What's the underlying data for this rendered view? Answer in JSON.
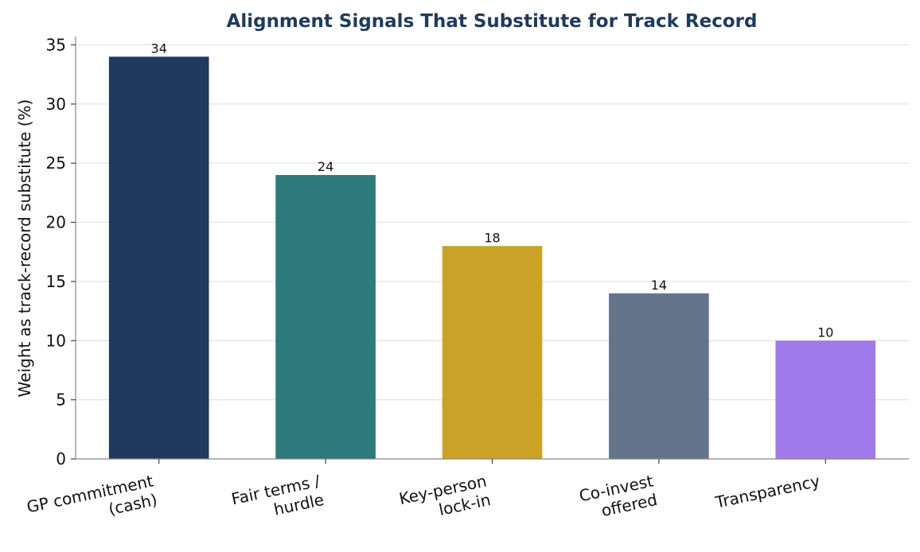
{
  "chart_data": {
    "type": "bar",
    "title": "Alignment Signals That Substitute for Track Record",
    "xlabel": "",
    "ylabel": "Weight as track-record substitute (%)",
    "categories": [
      [
        "GP commitment",
        "(cash)"
      ],
      [
        "Fair terms /",
        "hurdle"
      ],
      [
        "Key-person",
        "lock-in"
      ],
      [
        "Co-invest",
        "offered"
      ],
      [
        "Transparency"
      ]
    ],
    "values": [
      34,
      24,
      18,
      14,
      10
    ],
    "colors": [
      "#1f3a5c",
      "#2c7a7b",
      "#c9a227",
      "#64748b",
      "#9f7aea"
    ],
    "ylim": [
      0,
      35.7
    ],
    "yticks": [
      0,
      5,
      10,
      15,
      20,
      25,
      30,
      35
    ],
    "grid": "y",
    "legend": "none"
  }
}
